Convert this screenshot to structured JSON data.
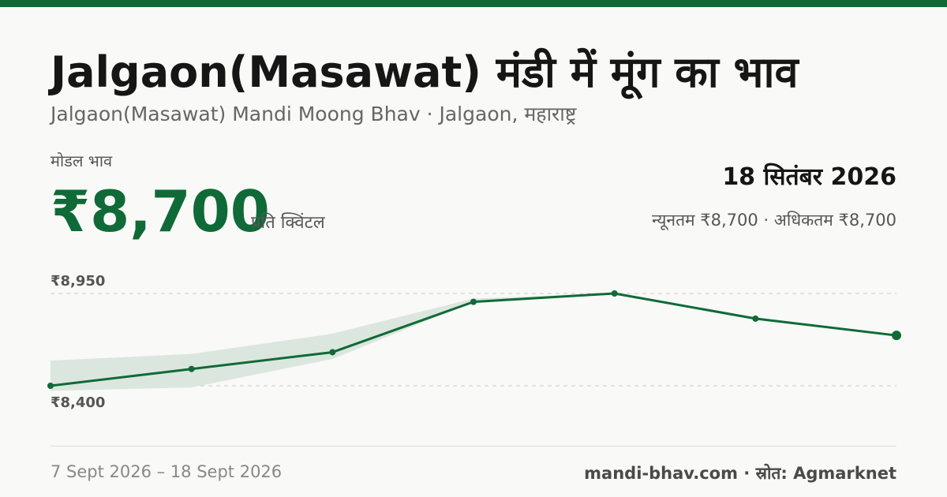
{
  "header": {
    "title": "Jalgaon(Masawat) मंडी में मूंग का भाव",
    "subtitle": "Jalgaon(Masawat) Mandi Moong Bhav · Jalgaon, महाराष्ट्र"
  },
  "price": {
    "label": "मोडल भाव",
    "value": "₹8,700",
    "unit": "प्रति क्विंटल"
  },
  "summary": {
    "date": "18 सितंबर 2026",
    "range": "न्यूनतम ₹8,700 · अधिकतम ₹8,700"
  },
  "footer": {
    "date_range": "7 Sept 2026 – 18 Sept 2026",
    "source": "mandi-bhav.com · स्रोत: Agmarknet"
  },
  "colors": {
    "accent": "#0f6a37",
    "band": "#dbe6de"
  },
  "chart_data": {
    "type": "line",
    "y_ticks": [
      {
        "value": 8950,
        "label": "₹8,950"
      },
      {
        "value": 8400,
        "label": "₹8,400"
      }
    ],
    "ylim": [
      8400,
      8950
    ],
    "series": [
      {
        "values": [
          8400,
          8500,
          8600,
          8900,
          8950,
          8800,
          8700
        ]
      }
    ],
    "band": {
      "lower": [
        8370,
        8390,
        8560,
        8900,
        8950,
        8800,
        8700
      ],
      "upper": [
        8550,
        8590,
        8710,
        8920,
        8950,
        8800,
        8700
      ]
    },
    "grid": true
  }
}
